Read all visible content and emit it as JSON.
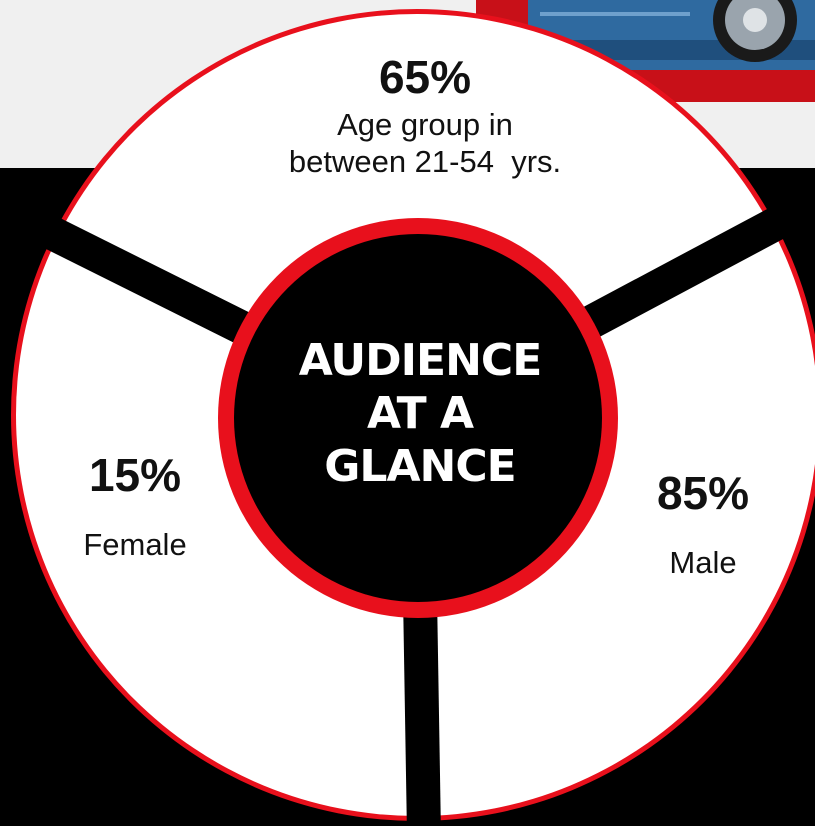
{
  "title": "AUDIENCE\nAT A\nGLANCE",
  "segments": {
    "age": {
      "percent": "65%",
      "label_line1": "Age group in",
      "label_line2": "between 21-54  yrs."
    },
    "female": {
      "percent": "15%",
      "label": "Female"
    },
    "male": {
      "percent": "85%",
      "label": "Male"
    }
  },
  "colors": {
    "background": "#000000",
    "accent_red": "#e8101c",
    "segment_fill": "#ffffff",
    "text_dark": "#111111",
    "text_light": "#ffffff",
    "top_panel": "#f0f0f0",
    "car_blue": "#2f6aa0"
  }
}
